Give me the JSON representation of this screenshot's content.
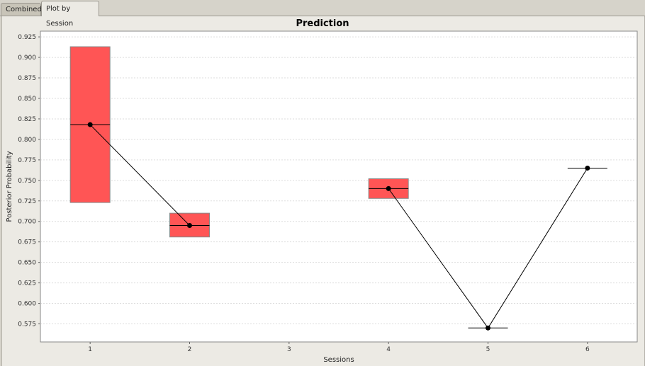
{
  "tabs": [
    {
      "label": "Combined",
      "active": false
    },
    {
      "label": "Plot by Session",
      "active": true
    }
  ],
  "colors": {
    "box_fill": "#ff5555",
    "box_stroke": "#888888",
    "line": "#000000",
    "grid": "#dddddd"
  },
  "chart_data": {
    "type": "box",
    "title": "Prediction",
    "xlabel": "Sessions",
    "ylabel": "Posterior Probability",
    "ylim": [
      0.553,
      0.932
    ],
    "yticks": [
      "0.575",
      "0.600",
      "0.625",
      "0.650",
      "0.675",
      "0.700",
      "0.725",
      "0.750",
      "0.775",
      "0.800",
      "0.825",
      "0.850",
      "0.875",
      "0.900",
      "0.925"
    ],
    "categories": [
      "1",
      "2",
      "3",
      "4",
      "5",
      "6"
    ],
    "grid": true,
    "series": [
      {
        "points": [
          {
            "session": "1",
            "median": 0.818,
            "low": 0.723,
            "high": 0.913
          },
          {
            "session": "2",
            "median": 0.695,
            "low": 0.681,
            "high": 0.71
          },
          {
            "session": "3",
            "median": null,
            "low": null,
            "high": null
          },
          {
            "session": "4",
            "median": 0.74,
            "low": 0.728,
            "high": 0.752
          },
          {
            "session": "5",
            "median": 0.57,
            "low": 0.57,
            "high": 0.57
          },
          {
            "session": "6",
            "median": 0.765,
            "low": 0.765,
            "high": 0.765
          }
        ]
      }
    ]
  }
}
